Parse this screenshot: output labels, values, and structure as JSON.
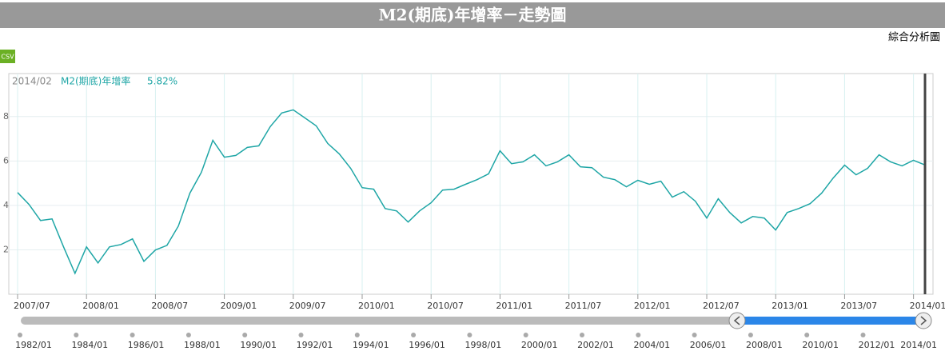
{
  "header": {
    "title": "M2(期底)年增率－走勢圖",
    "link": "綜合分析圖",
    "csv": "CSV"
  },
  "legend": {
    "date": "2014/02",
    "value_label": "5.82%"
  },
  "chart_data": {
    "type": "line",
    "categories": [
      "2007/07",
      null,
      null,
      null,
      null,
      null,
      "2008/01",
      null,
      null,
      null,
      null,
      null,
      "2008/07",
      null,
      null,
      null,
      null,
      null,
      "2009/01",
      null,
      null,
      null,
      null,
      null,
      "2009/07",
      null,
      null,
      null,
      null,
      null,
      "2010/01",
      null,
      null,
      null,
      null,
      null,
      "2010/07",
      null,
      null,
      null,
      null,
      null,
      "2011/01",
      null,
      null,
      null,
      null,
      null,
      "2011/07",
      null,
      null,
      null,
      null,
      null,
      "2012/01",
      null,
      null,
      null,
      null,
      null,
      "2012/07",
      null,
      null,
      null,
      null,
      null,
      "2013/01",
      null,
      null,
      null,
      null,
      null,
      "2013/07",
      null,
      null,
      null,
      null,
      null,
      "2014/01",
      null
    ],
    "series": [
      {
        "name": "M2(期底)年增率",
        "color": "#1fa6a6",
        "values": [
          4.58,
          4.04,
          3.32,
          3.39,
          2.13,
          0.94,
          2.13,
          1.41,
          2.13,
          2.24,
          2.49,
          1.48,
          1.99,
          2.2,
          3.07,
          4.55,
          5.49,
          6.93,
          6.17,
          6.25,
          6.61,
          6.68,
          7.55,
          8.16,
          8.3,
          7.94,
          7.58,
          6.79,
          6.32,
          5.67,
          4.8,
          4.73,
          3.86,
          3.75,
          3.25,
          3.75,
          4.12,
          4.69,
          4.73,
          4.95,
          5.16,
          5.42,
          6.46,
          5.88,
          5.96,
          6.28,
          5.78,
          5.96,
          6.28,
          5.74,
          5.7,
          5.27,
          5.16,
          4.84,
          5.13,
          4.95,
          5.09,
          4.37,
          4.62,
          4.19,
          3.43,
          4.3,
          3.68,
          3.21,
          3.5,
          3.43,
          2.89,
          3.68,
          3.86,
          4.08,
          4.55,
          5.23,
          5.81,
          5.38,
          5.67,
          6.28,
          5.96,
          5.78,
          6.03,
          5.82
        ]
      }
    ],
    "ylim": [
      0,
      9.9
    ],
    "yticks": [
      2,
      4,
      6,
      8
    ],
    "grid": true
  },
  "navigator": {
    "labels": [
      "1982/01",
      "1984/01",
      "1986/01",
      "1988/01",
      "1990/01",
      "1992/01",
      "1994/01",
      "1996/01",
      "1998/01",
      "2000/01",
      "2002/01",
      "2004/01",
      "2006/01",
      "2008/01",
      "2010/01",
      "2012/01",
      "2014/01"
    ]
  }
}
